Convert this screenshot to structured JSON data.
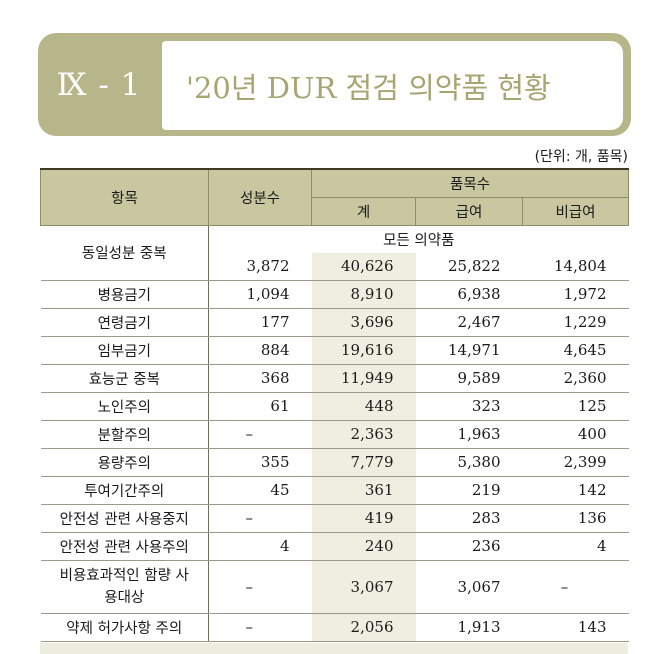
{
  "banner": {
    "number": "Ⅸ - 1",
    "title": "'20년 DUR 점검 의약품 현황"
  },
  "unit": "(단위: 개, 품목)",
  "header": {
    "item": "항목",
    "ingredients": "성분수",
    "products": "품목수",
    "total": "계",
    "covered": "급여",
    "noncovered": "비급여"
  },
  "all_products_label": "모든 의약품",
  "rows": [
    {
      "label": "동일성분 중복",
      "ingredients": "3,872",
      "total": "40,626",
      "covered": "25,822",
      "noncovered": "14,804"
    },
    {
      "label": "병용금기",
      "ingredients": "1,094",
      "total": "8,910",
      "covered": "6,938",
      "noncovered": "1,972"
    },
    {
      "label": "연령금기",
      "ingredients": "177",
      "total": "3,696",
      "covered": "2,467",
      "noncovered": "1,229"
    },
    {
      "label": "임부금기",
      "ingredients": "884",
      "total": "19,616",
      "covered": "14,971",
      "noncovered": "4,645"
    },
    {
      "label": "효능군 중복",
      "ingredients": "368",
      "total": "11,949",
      "covered": "9,589",
      "noncovered": "2,360"
    },
    {
      "label": "노인주의",
      "ingredients": "61",
      "total": "448",
      "covered": "323",
      "noncovered": "125"
    },
    {
      "label": "분할주의",
      "ingredients": "–",
      "total": "2,363",
      "covered": "1,963",
      "noncovered": "400"
    },
    {
      "label": "용량주의",
      "ingredients": "355",
      "total": "7,779",
      "covered": "5,380",
      "noncovered": "2,399"
    },
    {
      "label": "투여기간주의",
      "ingredients": "45",
      "total": "361",
      "covered": "219",
      "noncovered": "142"
    },
    {
      "label": "안전성 관련 사용중지",
      "ingredients": "–",
      "total": "419",
      "covered": "283",
      "noncovered": "136"
    },
    {
      "label": "안전성 관련 사용주의",
      "ingredients": "4",
      "total": "240",
      "covered": "236",
      "noncovered": "4"
    },
    {
      "label": "비용효과적인 함량 사용대상",
      "ingredients": "–",
      "total": "3,067",
      "covered": "3,067",
      "noncovered": "–"
    },
    {
      "label": "약제 허가사항 주의",
      "ingredients": "–",
      "total": "2,056",
      "covered": "1,913",
      "noncovered": "143"
    }
  ]
}
